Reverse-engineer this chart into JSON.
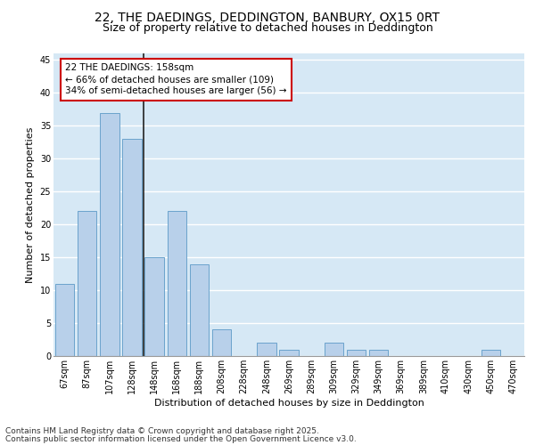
{
  "title_line1": "22, THE DAEDINGS, DEDDINGTON, BANBURY, OX15 0RT",
  "title_line2": "Size of property relative to detached houses in Deddington",
  "xlabel": "Distribution of detached houses by size in Deddington",
  "ylabel": "Number of detached properties",
  "categories": [
    "67sqm",
    "87sqm",
    "107sqm",
    "128sqm",
    "148sqm",
    "168sqm",
    "188sqm",
    "208sqm",
    "228sqm",
    "248sqm",
    "269sqm",
    "289sqm",
    "309sqm",
    "329sqm",
    "349sqm",
    "369sqm",
    "389sqm",
    "410sqm",
    "430sqm",
    "450sqm",
    "470sqm"
  ],
  "values": [
    11,
    22,
    37,
    33,
    15,
    22,
    14,
    4,
    0,
    2,
    1,
    0,
    2,
    1,
    1,
    0,
    0,
    0,
    0,
    1,
    0
  ],
  "bar_color": "#b8d0ea",
  "bar_edge_color": "#6ba3cc",
  "background_color": "#d6e8f5",
  "annotation_text": "22 THE DAEDINGS: 158sqm\n← 66% of detached houses are smaller (109)\n34% of semi-detached houses are larger (56) →",
  "vline_x": 3.5,
  "ylim": [
    0,
    46
  ],
  "yticks": [
    0,
    5,
    10,
    15,
    20,
    25,
    30,
    35,
    40,
    45
  ],
  "footer_line1": "Contains HM Land Registry data © Crown copyright and database right 2025.",
  "footer_line2": "Contains public sector information licensed under the Open Government Licence v3.0.",
  "annotation_box_facecolor": "#ffffff",
  "annotation_box_edgecolor": "#cc0000",
  "title_fontsize": 10,
  "subtitle_fontsize": 9,
  "axis_label_fontsize": 8,
  "tick_fontsize": 7,
  "annotation_fontsize": 7.5,
  "footer_fontsize": 6.5
}
